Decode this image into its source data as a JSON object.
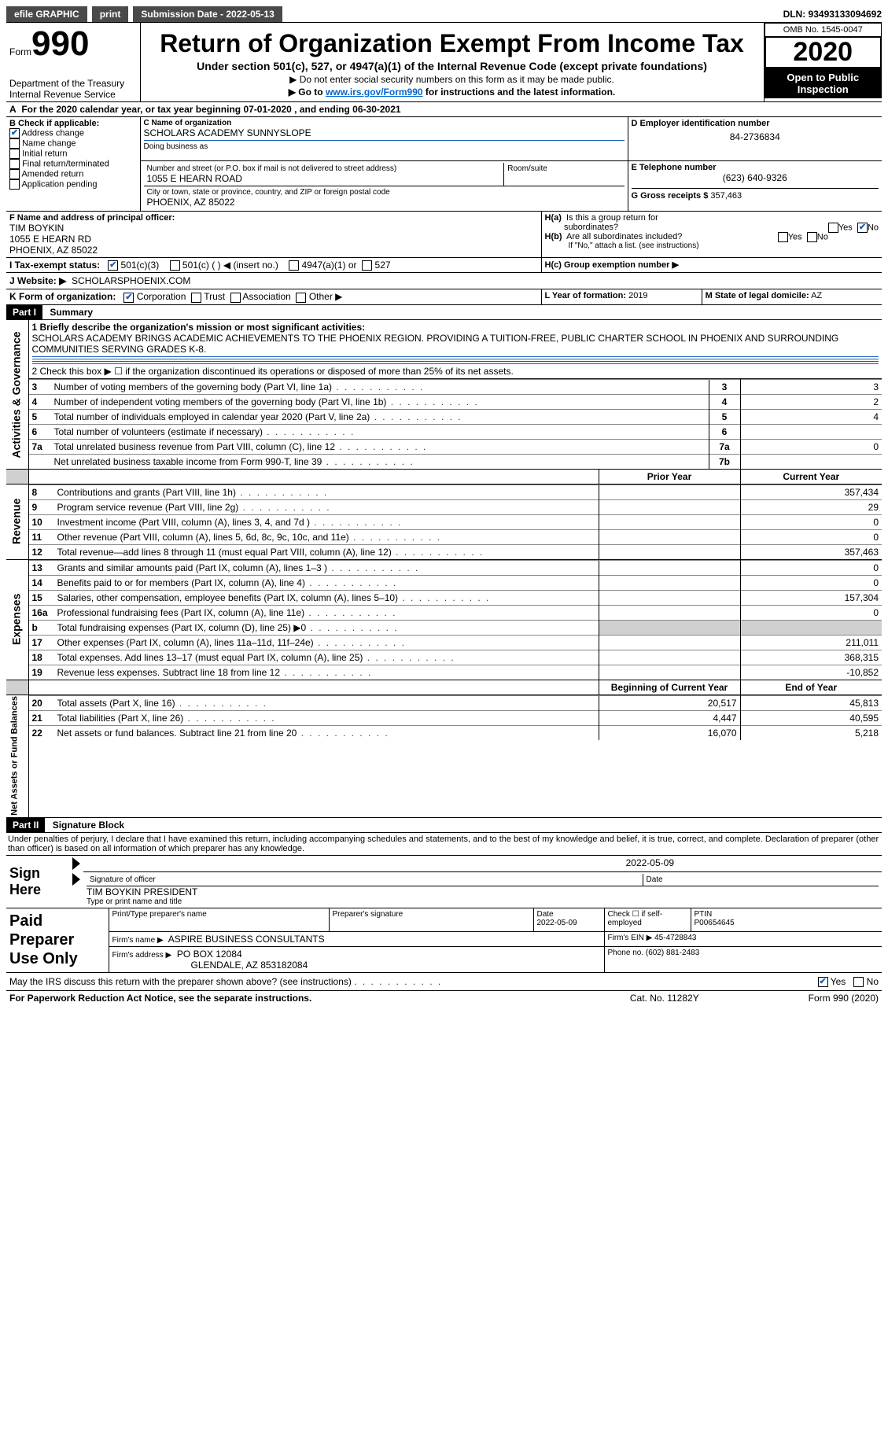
{
  "topbar": {
    "efile_label": "efile GRAPHIC",
    "print_btn": "print",
    "submission_label": "Submission Date - 2022-05-13",
    "dln_label": "DLN: 93493133094692"
  },
  "header": {
    "form_prefix": "Form",
    "form_number": "990",
    "dept1": "Department of the Treasury",
    "dept2": "Internal Revenue Service",
    "title": "Return of Organization Exempt From Income Tax",
    "subtitle": "Under section 501(c), 527, or 4947(a)(1) of the Internal Revenue Code (except private foundations)",
    "note1": "▶ Do not enter social security numbers on this form as it may be made public.",
    "note2_prefix": "▶ Go to ",
    "note2_link": "www.irs.gov/Form990",
    "note2_suffix": " for instructions and the latest information.",
    "omb": "OMB No. 1545-0047",
    "year": "2020",
    "inspection1": "Open to Public",
    "inspection2": "Inspection"
  },
  "lineA": "For the 2020 calendar year, or tax year beginning 07-01-2020     , and ending 06-30-2021",
  "boxB": {
    "label": "B Check if applicable:",
    "address": "Address change",
    "name": "Name change",
    "initial": "Initial return",
    "final": "Final return/terminated",
    "amended": "Amended return",
    "app": "Application pending"
  },
  "boxC": {
    "label_name": "C Name of organization",
    "org_name": "SCHOLARS ACADEMY SUNNYSLOPE",
    "dba_label": "Doing business as",
    "addr_label": "Number and street (or P.O. box if mail is not delivered to street address)",
    "room_label": "Room/suite",
    "addr": "1055 E HEARN ROAD",
    "city_label": "City or town, state or province, country, and ZIP or foreign postal code",
    "city": "PHOENIX, AZ   85022"
  },
  "boxD": {
    "label": "D Employer identification number",
    "value": "84-2736834"
  },
  "boxE": {
    "label": "E Telephone number",
    "value": "(623) 640-9326"
  },
  "boxG": {
    "label": "G Gross receipts $",
    "value": "357,463"
  },
  "boxF": {
    "label": "F  Name and address of principal officer:",
    "name": "TIM BOYKIN",
    "addr": "1055 E HEARN RD",
    "city": "PHOENIX, AZ   85022"
  },
  "boxH": {
    "a_label": "H(a)  Is this a group return for subordinates?",
    "b_label": "H(b)  Are all subordinates included?",
    "b_note": "If \"No,\" attach a list. (see instructions)",
    "c_label": "H(c)  Group exemption number ▶",
    "yes": "Yes",
    "no": "No"
  },
  "boxI": {
    "label": "I    Tax-exempt status:",
    "c3": "501(c)(3)",
    "c": "501(c) (   ) ◀ (insert no.)",
    "a1": "4947(a)(1) or",
    "527": "527"
  },
  "boxJ": {
    "label": "J    Website: ▶",
    "value": "SCHOLARSPHOENIX.COM"
  },
  "boxK": {
    "label": "K Form of organization:",
    "corp": "Corporation",
    "trust": "Trust",
    "assoc": "Association",
    "other": "Other ▶"
  },
  "boxL": {
    "label": "L Year of formation:",
    "value": "2019"
  },
  "boxM": {
    "label": "M State of legal domicile:",
    "value": "AZ"
  },
  "part1": {
    "head": "Part I",
    "title": "Summary",
    "side1": "Activities & Governance",
    "side2": "Revenue",
    "side3": "Expenses",
    "side4": "Net Assets or Fund Balances",
    "l1_label": "1  Briefly describe the organization's mission or most significant activities:",
    "l1_text": "SCHOLARS ACADEMY BRINGS ACADEMIC ACHIEVEMENTS TO THE PHOENIX REGION. PROVIDING A TUITION-FREE, PUBLIC CHARTER SCHOOL IN PHOENIX AND SURROUNDING COMMUNITIES SERVING GRADES K-8.",
    "l2": "2    Check this box ▶ ☐   if the organization discontinued its operations or disposed of more than 25% of its net assets.",
    "rows_gov": [
      {
        "n": "3",
        "t": "Number of voting members of the governing body (Part VI, line 1a)",
        "box": "3",
        "v": "3"
      },
      {
        "n": "4",
        "t": "Number of independent voting members of the governing body (Part VI, line 1b)",
        "box": "4",
        "v": "2"
      },
      {
        "n": "5",
        "t": "Total number of individuals employed in calendar year 2020 (Part V, line 2a)",
        "box": "5",
        "v": "4"
      },
      {
        "n": "6",
        "t": "Total number of volunteers (estimate if necessary)",
        "box": "6",
        "v": ""
      },
      {
        "n": "7a",
        "t": "Total unrelated business revenue from Part VIII, column (C), line 12",
        "box": "7a",
        "v": "0"
      },
      {
        "n": "",
        "t": "Net unrelated business taxable income from Form 990-T, line 39",
        "box": "7b",
        "v": ""
      }
    ],
    "col_prior": "Prior Year",
    "col_current": "Current Year",
    "rows_rev": [
      {
        "n": "8",
        "t": "Contributions and grants (Part VIII, line 1h)",
        "p": "",
        "c": "357,434"
      },
      {
        "n": "9",
        "t": "Program service revenue (Part VIII, line 2g)",
        "p": "",
        "c": "29"
      },
      {
        "n": "10",
        "t": "Investment income (Part VIII, column (A), lines 3, 4, and 7d )",
        "p": "",
        "c": "0"
      },
      {
        "n": "11",
        "t": "Other revenue (Part VIII, column (A), lines 5, 6d, 8c, 9c, 10c, and 11e)",
        "p": "",
        "c": "0"
      },
      {
        "n": "12",
        "t": "Total revenue—add lines 8 through 11 (must equal Part VIII, column (A), line 12)",
        "p": "",
        "c": "357,463"
      }
    ],
    "rows_exp": [
      {
        "n": "13",
        "t": "Grants and similar amounts paid (Part IX, column (A), lines 1–3 )",
        "p": "",
        "c": "0"
      },
      {
        "n": "14",
        "t": "Benefits paid to or for members (Part IX, column (A), line 4)",
        "p": "",
        "c": "0"
      },
      {
        "n": "15",
        "t": "Salaries, other compensation, employee benefits (Part IX, column (A), lines 5–10)",
        "p": "",
        "c": "157,304"
      },
      {
        "n": "16a",
        "t": "Professional fundraising fees (Part IX, column (A), line 11e)",
        "p": "",
        "c": "0"
      },
      {
        "n": "b",
        "t": "Total fundraising expenses (Part IX, column (D), line 25) ▶0",
        "p": "shaded",
        "c": "shaded"
      },
      {
        "n": "17",
        "t": "Other expenses (Part IX, column (A), lines 11a–11d, 11f–24e)",
        "p": "",
        "c": "211,011"
      },
      {
        "n": "18",
        "t": "Total expenses. Add lines 13–17 (must equal Part IX, column (A), line 25)",
        "p": "",
        "c": "368,315"
      },
      {
        "n": "19",
        "t": "Revenue less expenses. Subtract line 18 from line 12",
        "p": "",
        "c": "-10,852"
      }
    ],
    "col_begin": "Beginning of Current Year",
    "col_end": "End of Year",
    "rows_net": [
      {
        "n": "20",
        "t": "Total assets (Part X, line 16)",
        "b": "20,517",
        "e": "45,813"
      },
      {
        "n": "21",
        "t": "Total liabilities (Part X, line 26)",
        "b": "4,447",
        "e": "40,595"
      },
      {
        "n": "22",
        "t": "Net assets or fund balances. Subtract line 21 from line 20",
        "b": "16,070",
        "e": "5,218"
      }
    ]
  },
  "part2": {
    "head": "Part II",
    "title": "Signature Block",
    "decl": "Under penalties of perjury, I declare that I have examined this return, including accompanying schedules and statements, and to the best of my knowledge and belief, it is true, correct, and complete. Declaration of preparer (other than officer) is based on all information of which preparer has any knowledge.",
    "sign_here": "Sign Here",
    "sig_date": "2022-05-09",
    "sig_label": "Signature of officer",
    "date_label": "Date",
    "name_title": "TIM BOYKIN  PRESIDENT",
    "name_label": "Type or print name and title",
    "paid": "Paid Preparer Use Only",
    "h_print": "Print/Type preparer's name",
    "h_sig": "Preparer's signature",
    "h_date": "Date",
    "h_date_v": "2022-05-09",
    "h_check": "Check ☐ if self-employed",
    "h_ptin": "PTIN",
    "ptin_v": "P00654645",
    "firm_name_l": "Firm's name     ▶",
    "firm_name": "ASPIRE BUSINESS CONSULTANTS",
    "firm_ein_l": "Firm's EIN ▶",
    "firm_ein": "45-4728843",
    "firm_addr_l": "Firm's address ▶",
    "firm_addr1": "PO BOX 12084",
    "firm_addr2": "GLENDALE, AZ   853182084",
    "phone_l": "Phone no.",
    "phone": "(602) 881-2483",
    "discuss": "May the IRS discuss this return with the preparer shown above? (see instructions)",
    "yes": "Yes",
    "no": "No"
  },
  "footer": {
    "left": "For Paperwork Reduction Act Notice, see the separate instructions.",
    "mid": "Cat. No. 11282Y",
    "right": "Form 990 (2020)"
  }
}
